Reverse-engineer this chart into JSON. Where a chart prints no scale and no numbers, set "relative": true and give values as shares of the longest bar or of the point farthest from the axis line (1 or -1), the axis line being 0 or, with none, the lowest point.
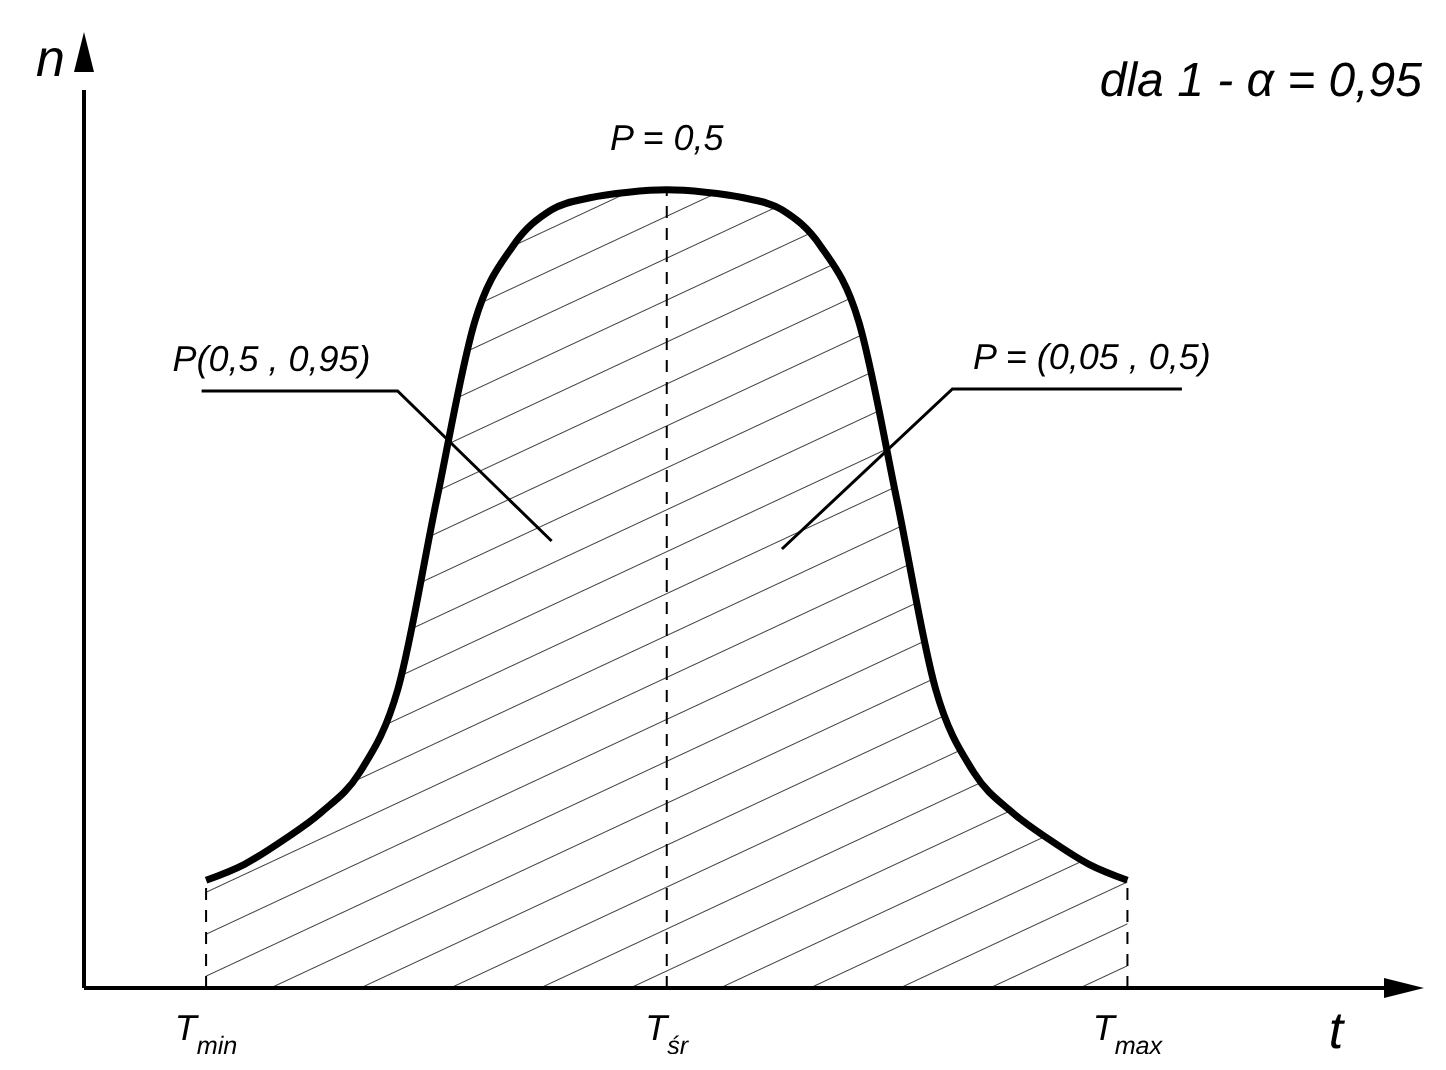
{
  "chart_data": {
    "type": "area",
    "relative": true,
    "title": "dla 1 - α = 0,95",
    "xlabel": "t",
    "ylabel": "n",
    "categories": [
      "T$_{min}$",
      null,
      null,
      null,
      null,
      null,
      null,
      null,
      null,
      null,
      null,
      null,
      "T$_{śr}$",
      null,
      null,
      null,
      null,
      null,
      null,
      null,
      null,
      null,
      null,
      null,
      "T$_{max}$"
    ],
    "values": [
      0.135,
      0.155,
      0.185,
      0.22,
      0.27,
      0.375,
      0.61,
      0.835,
      0.93,
      0.975,
      0.99,
      0.997,
      1,
      0.997,
      0.99,
      0.975,
      0.93,
      0.835,
      0.61,
      0.375,
      0.27,
      0.22,
      0.185,
      0.155,
      0.135
    ],
    "color": "#000000",
    "ref_lines": [
      {
        "axis": "x",
        "value": "T$_{min}$",
        "label": null,
        "line_style": "dashed"
      },
      {
        "axis": "x",
        "value": "T$_{śr}$",
        "label": null,
        "line_style": "dashed"
      },
      {
        "axis": "x",
        "value": "T$_{max}$",
        "label": null,
        "line_style": "dashed"
      }
    ],
    "annotations": [
      {
        "text": "P = 0,5",
        "x": "T$_{śr}$",
        "y": 1
      },
      "P(0,5 , 0,95)",
      "P = (0,05 , 0,5)"
    ],
    "grid": false,
    "legend": false
  }
}
